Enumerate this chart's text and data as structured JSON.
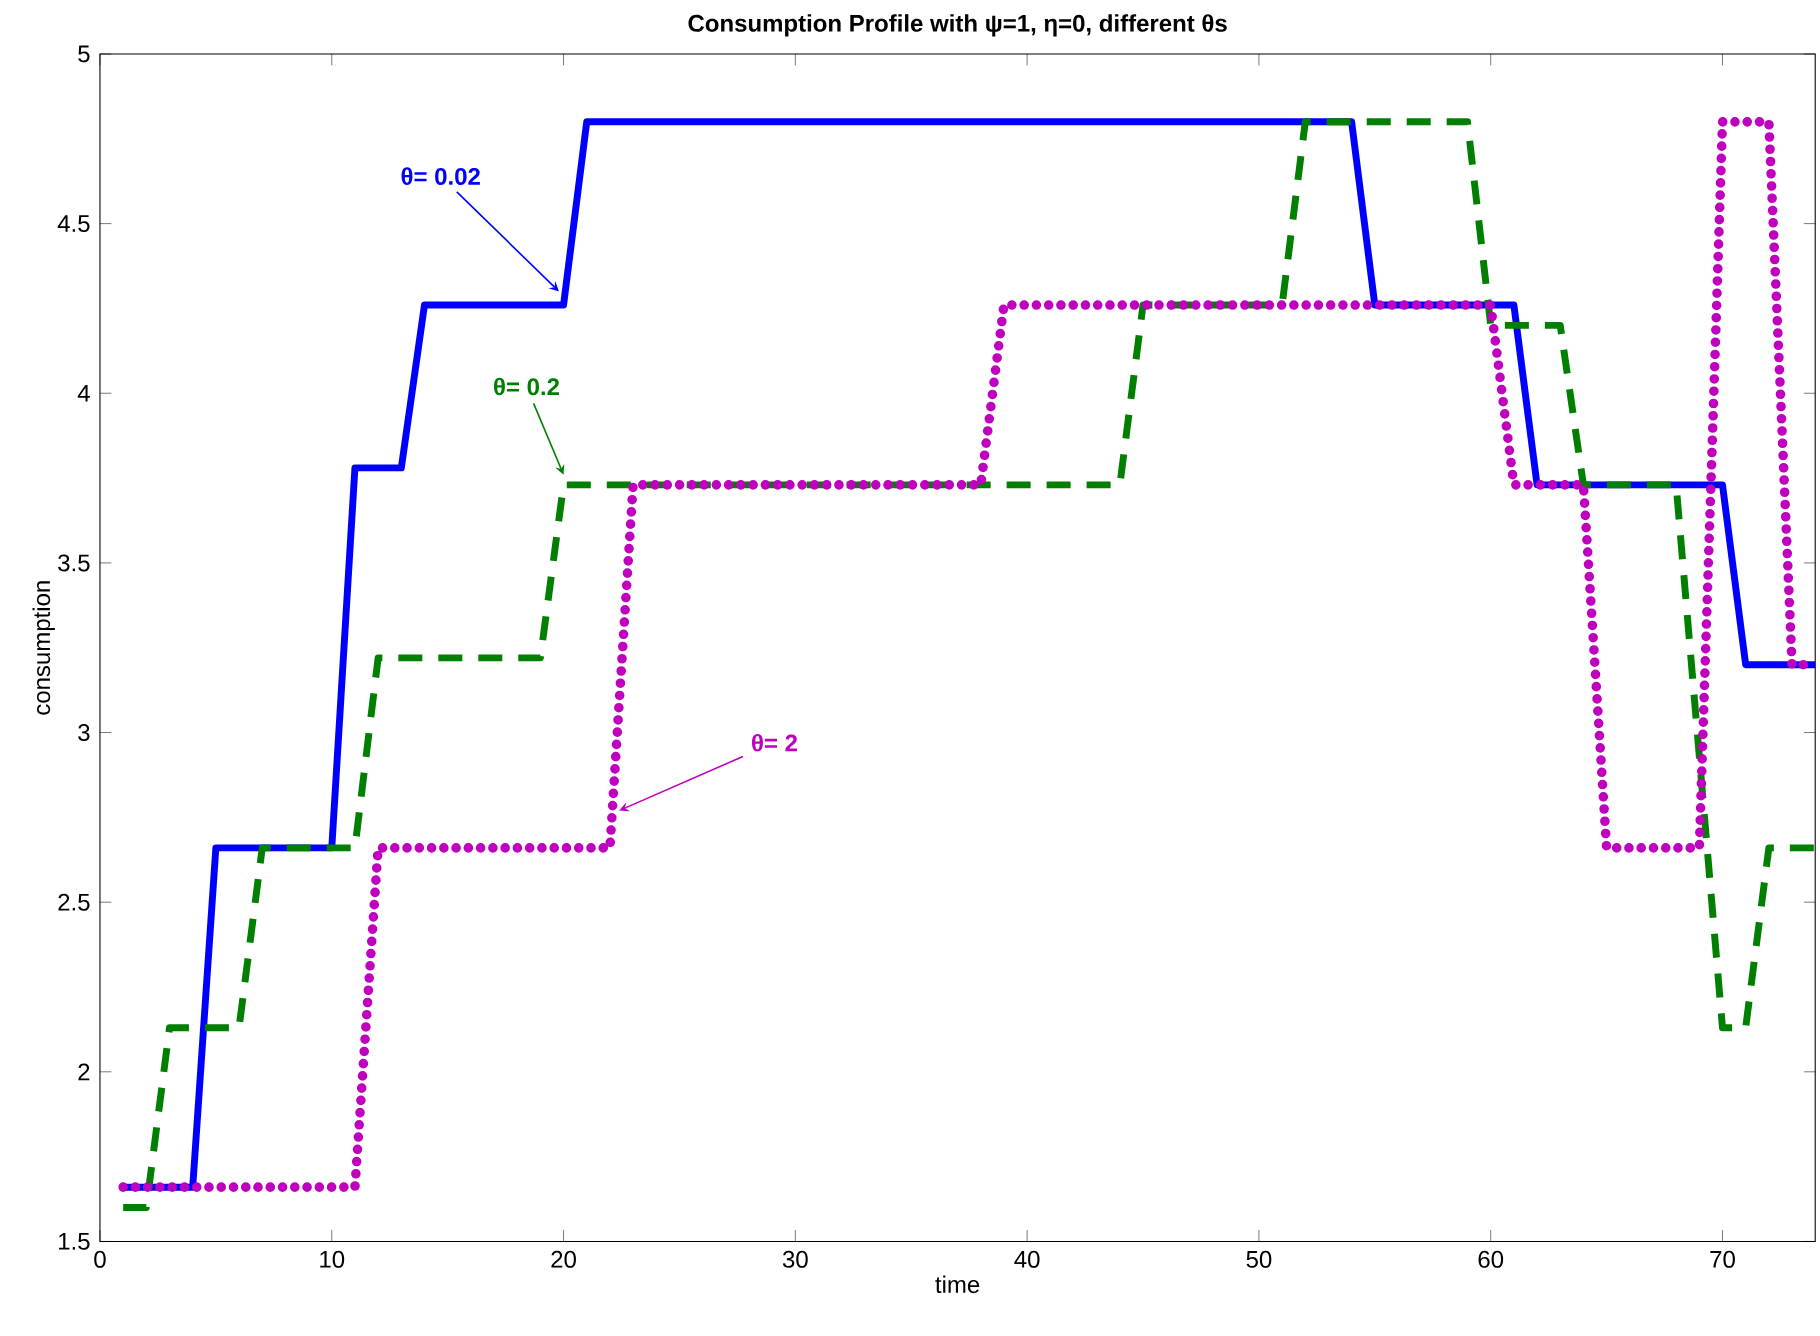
{
  "chart_data": {
    "type": "line",
    "title": "Consumption Profile with ψ=1, η=0, different θs",
    "xlabel": "time",
    "ylabel": "consumption",
    "x": [
      1,
      2,
      3,
      4,
      5,
      6,
      7,
      8,
      9,
      10,
      11,
      12,
      13,
      14,
      15,
      16,
      17,
      18,
      19,
      20,
      21,
      22,
      23,
      24,
      25,
      26,
      27,
      28,
      29,
      30,
      31,
      32,
      33,
      34,
      35,
      36,
      37,
      38,
      39,
      40,
      41,
      42,
      43,
      44,
      45,
      46,
      47,
      48,
      49,
      50,
      51,
      52,
      53,
      54,
      55,
      56,
      57,
      58,
      59,
      60,
      61,
      62,
      63,
      64,
      65,
      66,
      67,
      68,
      69,
      70,
      71,
      72,
      73,
      74
    ],
    "series": [
      {
        "color": "#0000ff",
        "line_style": "solid",
        "values": [
          1.66,
          1.66,
          1.66,
          1.66,
          2.66,
          2.66,
          2.66,
          2.66,
          2.66,
          2.66,
          3.78,
          3.78,
          3.78,
          4.26,
          4.26,
          4.26,
          4.26,
          4.26,
          4.26,
          4.26,
          4.8,
          4.8,
          4.8,
          4.8,
          4.8,
          4.8,
          4.8,
          4.8,
          4.8,
          4.8,
          4.8,
          4.8,
          4.8,
          4.8,
          4.8,
          4.8,
          4.8,
          4.8,
          4.8,
          4.8,
          4.8,
          4.8,
          4.8,
          4.8,
          4.8,
          4.8,
          4.8,
          4.8,
          4.8,
          4.8,
          4.8,
          4.8,
          4.8,
          4.8,
          4.26,
          4.26,
          4.26,
          4.26,
          4.26,
          4.26,
          4.26,
          3.73,
          3.73,
          3.73,
          3.73,
          3.73,
          3.73,
          3.73,
          3.73,
          3.73,
          3.2,
          3.2,
          3.2,
          3.2
        ]
      },
      {
        "color": "#007f00",
        "line_style": "dashed",
        "values": [
          1.6,
          1.6,
          2.13,
          2.13,
          2.13,
          2.13,
          2.66,
          2.66,
          2.66,
          2.66,
          2.66,
          3.22,
          3.22,
          3.22,
          3.22,
          3.22,
          3.22,
          3.22,
          3.22,
          3.73,
          3.73,
          3.73,
          3.73,
          3.73,
          3.73,
          3.73,
          3.73,
          3.73,
          3.73,
          3.73,
          3.73,
          3.73,
          3.73,
          3.73,
          3.73,
          3.73,
          3.73,
          3.73,
          3.73,
          3.73,
          3.73,
          3.73,
          3.73,
          3.73,
          4.26,
          4.26,
          4.26,
          4.26,
          4.26,
          4.26,
          4.26,
          4.8,
          4.8,
          4.8,
          4.8,
          4.8,
          4.8,
          4.8,
          4.8,
          4.2,
          4.2,
          4.2,
          4.2,
          3.73,
          3.73,
          3.73,
          3.73,
          3.73,
          2.93,
          2.13,
          2.13,
          2.66,
          2.66,
          2.66
        ]
      },
      {
        "color": "#bf00bf",
        "line_style": "dotted",
        "values": [
          1.66,
          1.66,
          1.66,
          1.66,
          1.66,
          1.66,
          1.66,
          1.66,
          1.66,
          1.66,
          1.66,
          2.66,
          2.66,
          2.66,
          2.66,
          2.66,
          2.66,
          2.66,
          2.66,
          2.66,
          2.66,
          2.66,
          3.73,
          3.73,
          3.73,
          3.73,
          3.73,
          3.73,
          3.73,
          3.73,
          3.73,
          3.73,
          3.73,
          3.73,
          3.73,
          3.73,
          3.73,
          3.73,
          4.26,
          4.26,
          4.26,
          4.26,
          4.26,
          4.26,
          4.26,
          4.26,
          4.26,
          4.26,
          4.26,
          4.26,
          4.26,
          4.26,
          4.26,
          4.26,
          4.26,
          4.26,
          4.26,
          4.26,
          4.26,
          4.26,
          3.73,
          3.73,
          3.73,
          3.73,
          2.66,
          2.66,
          2.66,
          2.66,
          2.66,
          4.8,
          4.8,
          4.8,
          3.2,
          3.2
        ]
      }
    ],
    "annotations": [
      {
        "text": "θ= 0.02",
        "x": 19.8,
        "y": 4.3
      },
      {
        "text": "θ= 0.2",
        "x": 20,
        "y": 3.76
      },
      {
        "text": "θ= 2",
        "x": 22.4,
        "y": 2.77
      }
    ],
    "xlim": [
      0,
      74
    ],
    "ylim": [
      1.5,
      5
    ],
    "xticks": [
      0,
      10,
      20,
      30,
      40,
      50,
      60,
      70
    ],
    "yticks": [
      1.5,
      2,
      2.5,
      3,
      3.5,
      4,
      4.5,
      5
    ],
    "grid": false,
    "marker": "none"
  }
}
